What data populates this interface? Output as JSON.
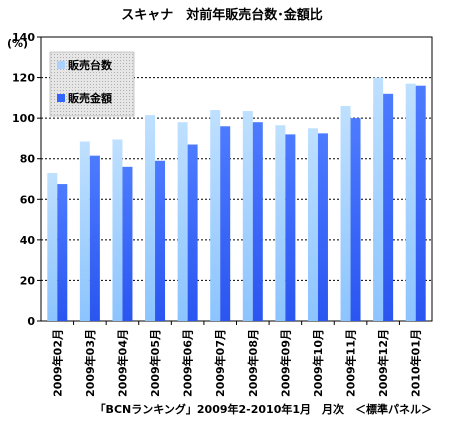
{
  "chart_data": {
    "type": "bar",
    "title": "スキャナ　対前年販売台数･金額比",
    "unit_label": "(%)",
    "footer": "「BCNランキング」2009年2-2010年1月　月次　＜標準パネル＞",
    "categories": [
      "2009年02月",
      "2009年03月",
      "2009年04月",
      "2009年05月",
      "2009年06月",
      "2009年07月",
      "2009年08月",
      "2009年09月",
      "2009年10月",
      "2009年11月",
      "2009年12月",
      "2010年01月"
    ],
    "series": [
      {
        "name": "販売台数",
        "color": "#aad4ff",
        "values": [
          73,
          88.5,
          89.5,
          101.5,
          98,
          104,
          103.5,
          96.5,
          95,
          106,
          120,
          117
        ]
      },
      {
        "name": "販売金額",
        "color": "#3366ff",
        "values": [
          67.5,
          81.5,
          76,
          79,
          87,
          96,
          98,
          92,
          92.5,
          100,
          112,
          116
        ]
      }
    ],
    "ylim": [
      0,
      140
    ],
    "yticks": [
      0,
      20,
      40,
      60,
      80,
      100,
      120,
      140
    ],
    "grid": true,
    "legend_position": "top-left"
  }
}
